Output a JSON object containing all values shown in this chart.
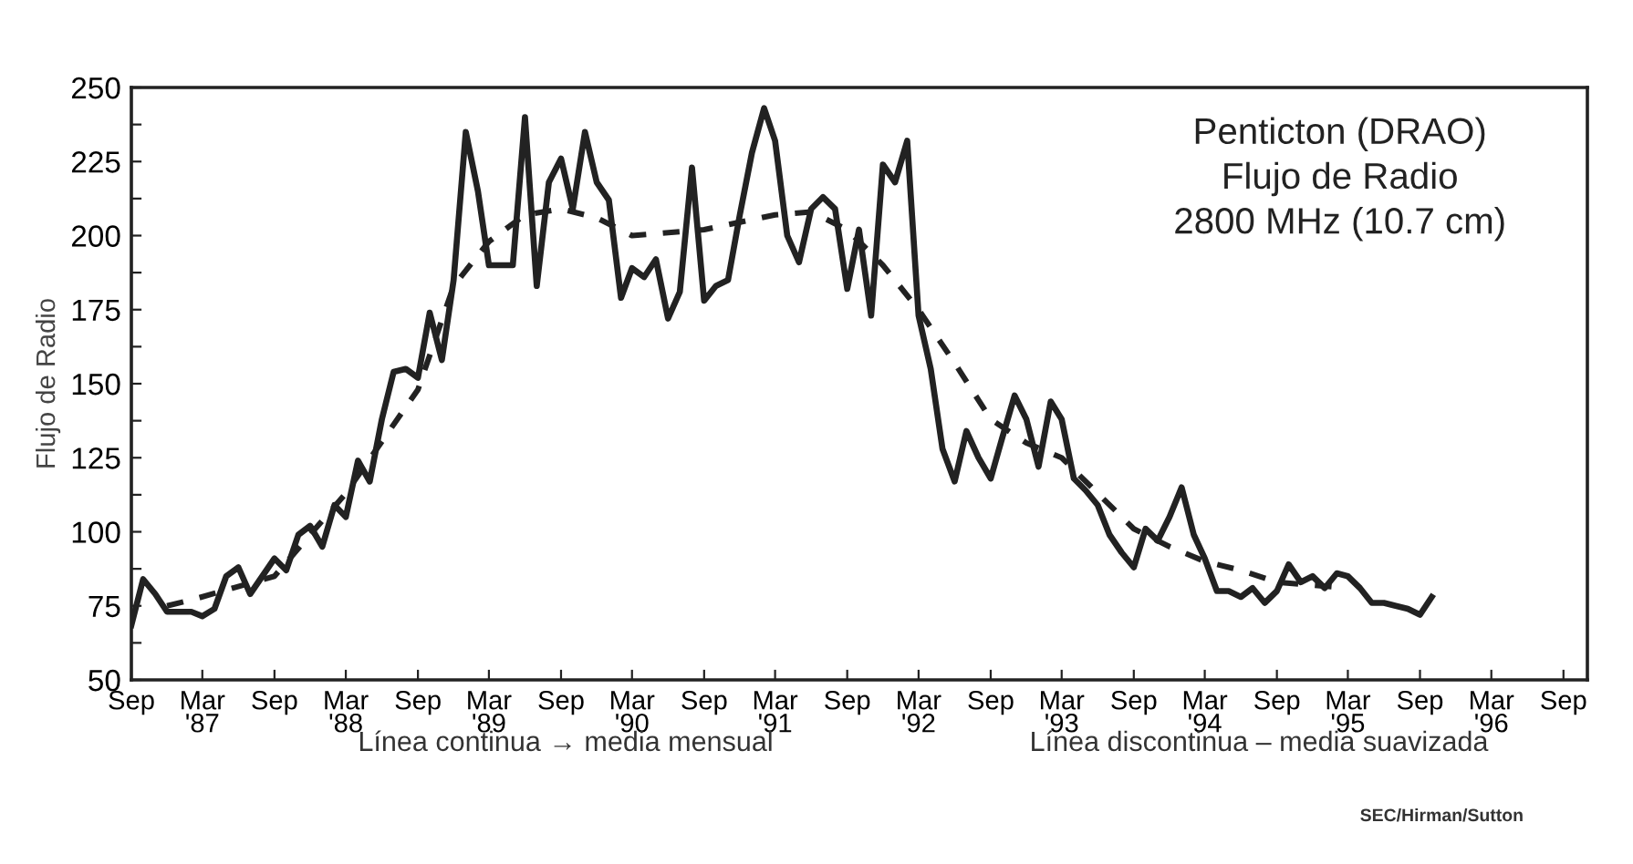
{
  "chart_data": {
    "type": "line",
    "title": "Penticton (DRAO)\nFlujo de Radio\n2800 MHz (10.7 cm)",
    "ylabel": "Flujo de Radio",
    "annotations": [
      "Línea continua → media mensual",
      "Línea discontinua – media suavizada",
      "SEC/Hirman/Sutton"
    ],
    "series": [
      {
        "color": "#222222",
        "line_style": "solid",
        "x": [
          "1986-09",
          "1986-10",
          "1986-11",
          "1986-12",
          "1987-01",
          "1987-02",
          "1987-03",
          "1987-04",
          "1987-05",
          "1987-06",
          "1987-07",
          "1987-08",
          "1987-09",
          "1987-10",
          "1987-11",
          "1987-12",
          "1988-01",
          "1988-02",
          "1988-03",
          "1988-04",
          "1988-05",
          "1988-06",
          "1988-07",
          "1988-08",
          "1988-09",
          "1988-10",
          "1988-11",
          "1988-12",
          "1989-01",
          "1989-02",
          "1989-03",
          "1989-04",
          "1989-05",
          "1989-06",
          "1989-07",
          "1989-08",
          "1989-09",
          "1989-10",
          "1989-11",
          "1989-12",
          "1990-01",
          "1990-02",
          "1990-03",
          "1990-04",
          "1990-05",
          "1990-06",
          "1990-07",
          "1990-08",
          "1990-09",
          "1990-10",
          "1990-11",
          "1990-12",
          "1991-01",
          "1991-02",
          "1991-03",
          "1991-04",
          "1991-05",
          "1991-06",
          "1991-07",
          "1991-08",
          "1991-09",
          "1991-10",
          "1991-11",
          "1991-12",
          "1992-01",
          "1992-02",
          "1992-03",
          "1992-04",
          "1992-05",
          "1992-06",
          "1992-07",
          "1992-08",
          "1992-09",
          "1992-10",
          "1992-11",
          "1992-12",
          "1993-01",
          "1993-02",
          "1993-03",
          "1993-04",
          "1993-05",
          "1993-06",
          "1993-07",
          "1993-08",
          "1993-09",
          "1993-10",
          "1993-11",
          "1993-12",
          "1994-01",
          "1994-02",
          "1994-03",
          "1994-04",
          "1994-05",
          "1994-06",
          "1994-07",
          "1994-08",
          "1994-09",
          "1994-10",
          "1994-11",
          "1994-12",
          "1995-01",
          "1995-02",
          "1995-03",
          "1995-04",
          "1995-05",
          "1995-06",
          "1995-07",
          "1995-08",
          "1995-09",
          "1995-10"
        ],
        "values": [
          68.5,
          84,
          79,
          73,
          73,
          73,
          71.5,
          74,
          85,
          88,
          79,
          85,
          91,
          87,
          99,
          102,
          95,
          109,
          105,
          124,
          117,
          138,
          154,
          155,
          152,
          174,
          158,
          185,
          235,
          215,
          190,
          190,
          190,
          240,
          183,
          218,
          226,
          209,
          235,
          218,
          212,
          179,
          189,
          186,
          192,
          172,
          181,
          223,
          178,
          183,
          185,
          207,
          228,
          243,
          232,
          200,
          191,
          209,
          213,
          209,
          182,
          202,
          173,
          224,
          218,
          232,
          173,
          155,
          128,
          117,
          134,
          125,
          118,
          132,
          146,
          138,
          122,
          144,
          138,
          118,
          114,
          109,
          99,
          93,
          88,
          101,
          97,
          105,
          115,
          99,
          91,
          80,
          80,
          78,
          81,
          76,
          80,
          89,
          83,
          85,
          81,
          86,
          85,
          81,
          76,
          76,
          75,
          74,
          72,
          78
        ]
      },
      {
        "color": "#222222",
        "line_style": "dashed",
        "x": [
          "1986-12",
          "1987-02",
          "1987-09",
          "1988-03",
          "1988-09",
          "1988-12",
          "1989-03",
          "1989-06",
          "1989-09",
          "1989-12",
          "1990-03",
          "1990-09",
          "1991-03",
          "1991-06",
          "1991-09",
          "1991-12",
          "1992-03",
          "1992-06",
          "1992-09",
          "1992-12",
          "1993-03",
          "1993-06",
          "1993-09",
          "1993-12",
          "1994-03",
          "1994-06",
          "1994-09",
          "1994-12",
          "1995-03"
        ],
        "values": [
          75,
          77,
          85,
          113,
          148,
          183,
          198,
          207,
          209,
          206,
          200,
          202,
          207,
          208,
          202,
          190,
          175,
          157,
          138,
          130,
          125,
          113,
          101,
          95,
          90,
          87,
          83,
          82,
          81
        ]
      }
    ],
    "ylim": [
      50,
      250
    ],
    "yticks": [
      50,
      {
        "value": 62.5,
        "label": null
      },
      75,
      {
        "value": 87.5,
        "label": null
      },
      100,
      {
        "value": 112.5,
        "label": null
      },
      125,
      {
        "value": 137.5,
        "label": null
      },
      150,
      {
        "value": 162.5,
        "label": null
      },
      175,
      {
        "value": 187.5,
        "label": null
      },
      200,
      {
        "value": 212.5,
        "label": null
      },
      225,
      {
        "value": 237.5,
        "label": null
      },
      250
    ],
    "xlim": [
      "1986-09-01",
      "1996-11-01"
    ],
    "xticks": [
      {
        "value": "1986-09",
        "label": "Sep"
      },
      {
        "value": "1987-03",
        "label": "Mar\n'87"
      },
      {
        "value": "1987-09",
        "label": "Sep"
      },
      {
        "value": "1988-03",
        "label": "Mar\n'88"
      },
      {
        "value": "1988-09",
        "label": "Sep"
      },
      {
        "value": "1989-03",
        "label": "Mar\n'89"
      },
      {
        "value": "1989-09",
        "label": "Sep"
      },
      {
        "value": "1990-03",
        "label": "Mar\n'90"
      },
      {
        "value": "1990-09",
        "label": "Sep"
      },
      {
        "value": "1991-03",
        "label": "Mar\n'91"
      },
      {
        "value": "1991-09",
        "label": "Sep"
      },
      {
        "value": "1992-03",
        "label": "Mar\n'92"
      },
      {
        "value": "1992-09",
        "label": "Sep"
      },
      {
        "value": "1993-03",
        "label": "Mar\n'93"
      },
      {
        "value": "1993-09",
        "label": "Sep"
      },
      {
        "value": "1994-03",
        "label": "Mar\n'94"
      },
      {
        "value": "1994-09",
        "label": "Sep"
      },
      {
        "value": "1995-03",
        "label": "Mar\n'95"
      },
      {
        "value": "1995-09",
        "label": "Sep"
      },
      {
        "value": "1996-03",
        "label": "Mar\n'96"
      },
      {
        "value": "1996-09",
        "label": "Sep"
      }
    ],
    "grid": false,
    "legend": false,
    "marker": "none"
  }
}
